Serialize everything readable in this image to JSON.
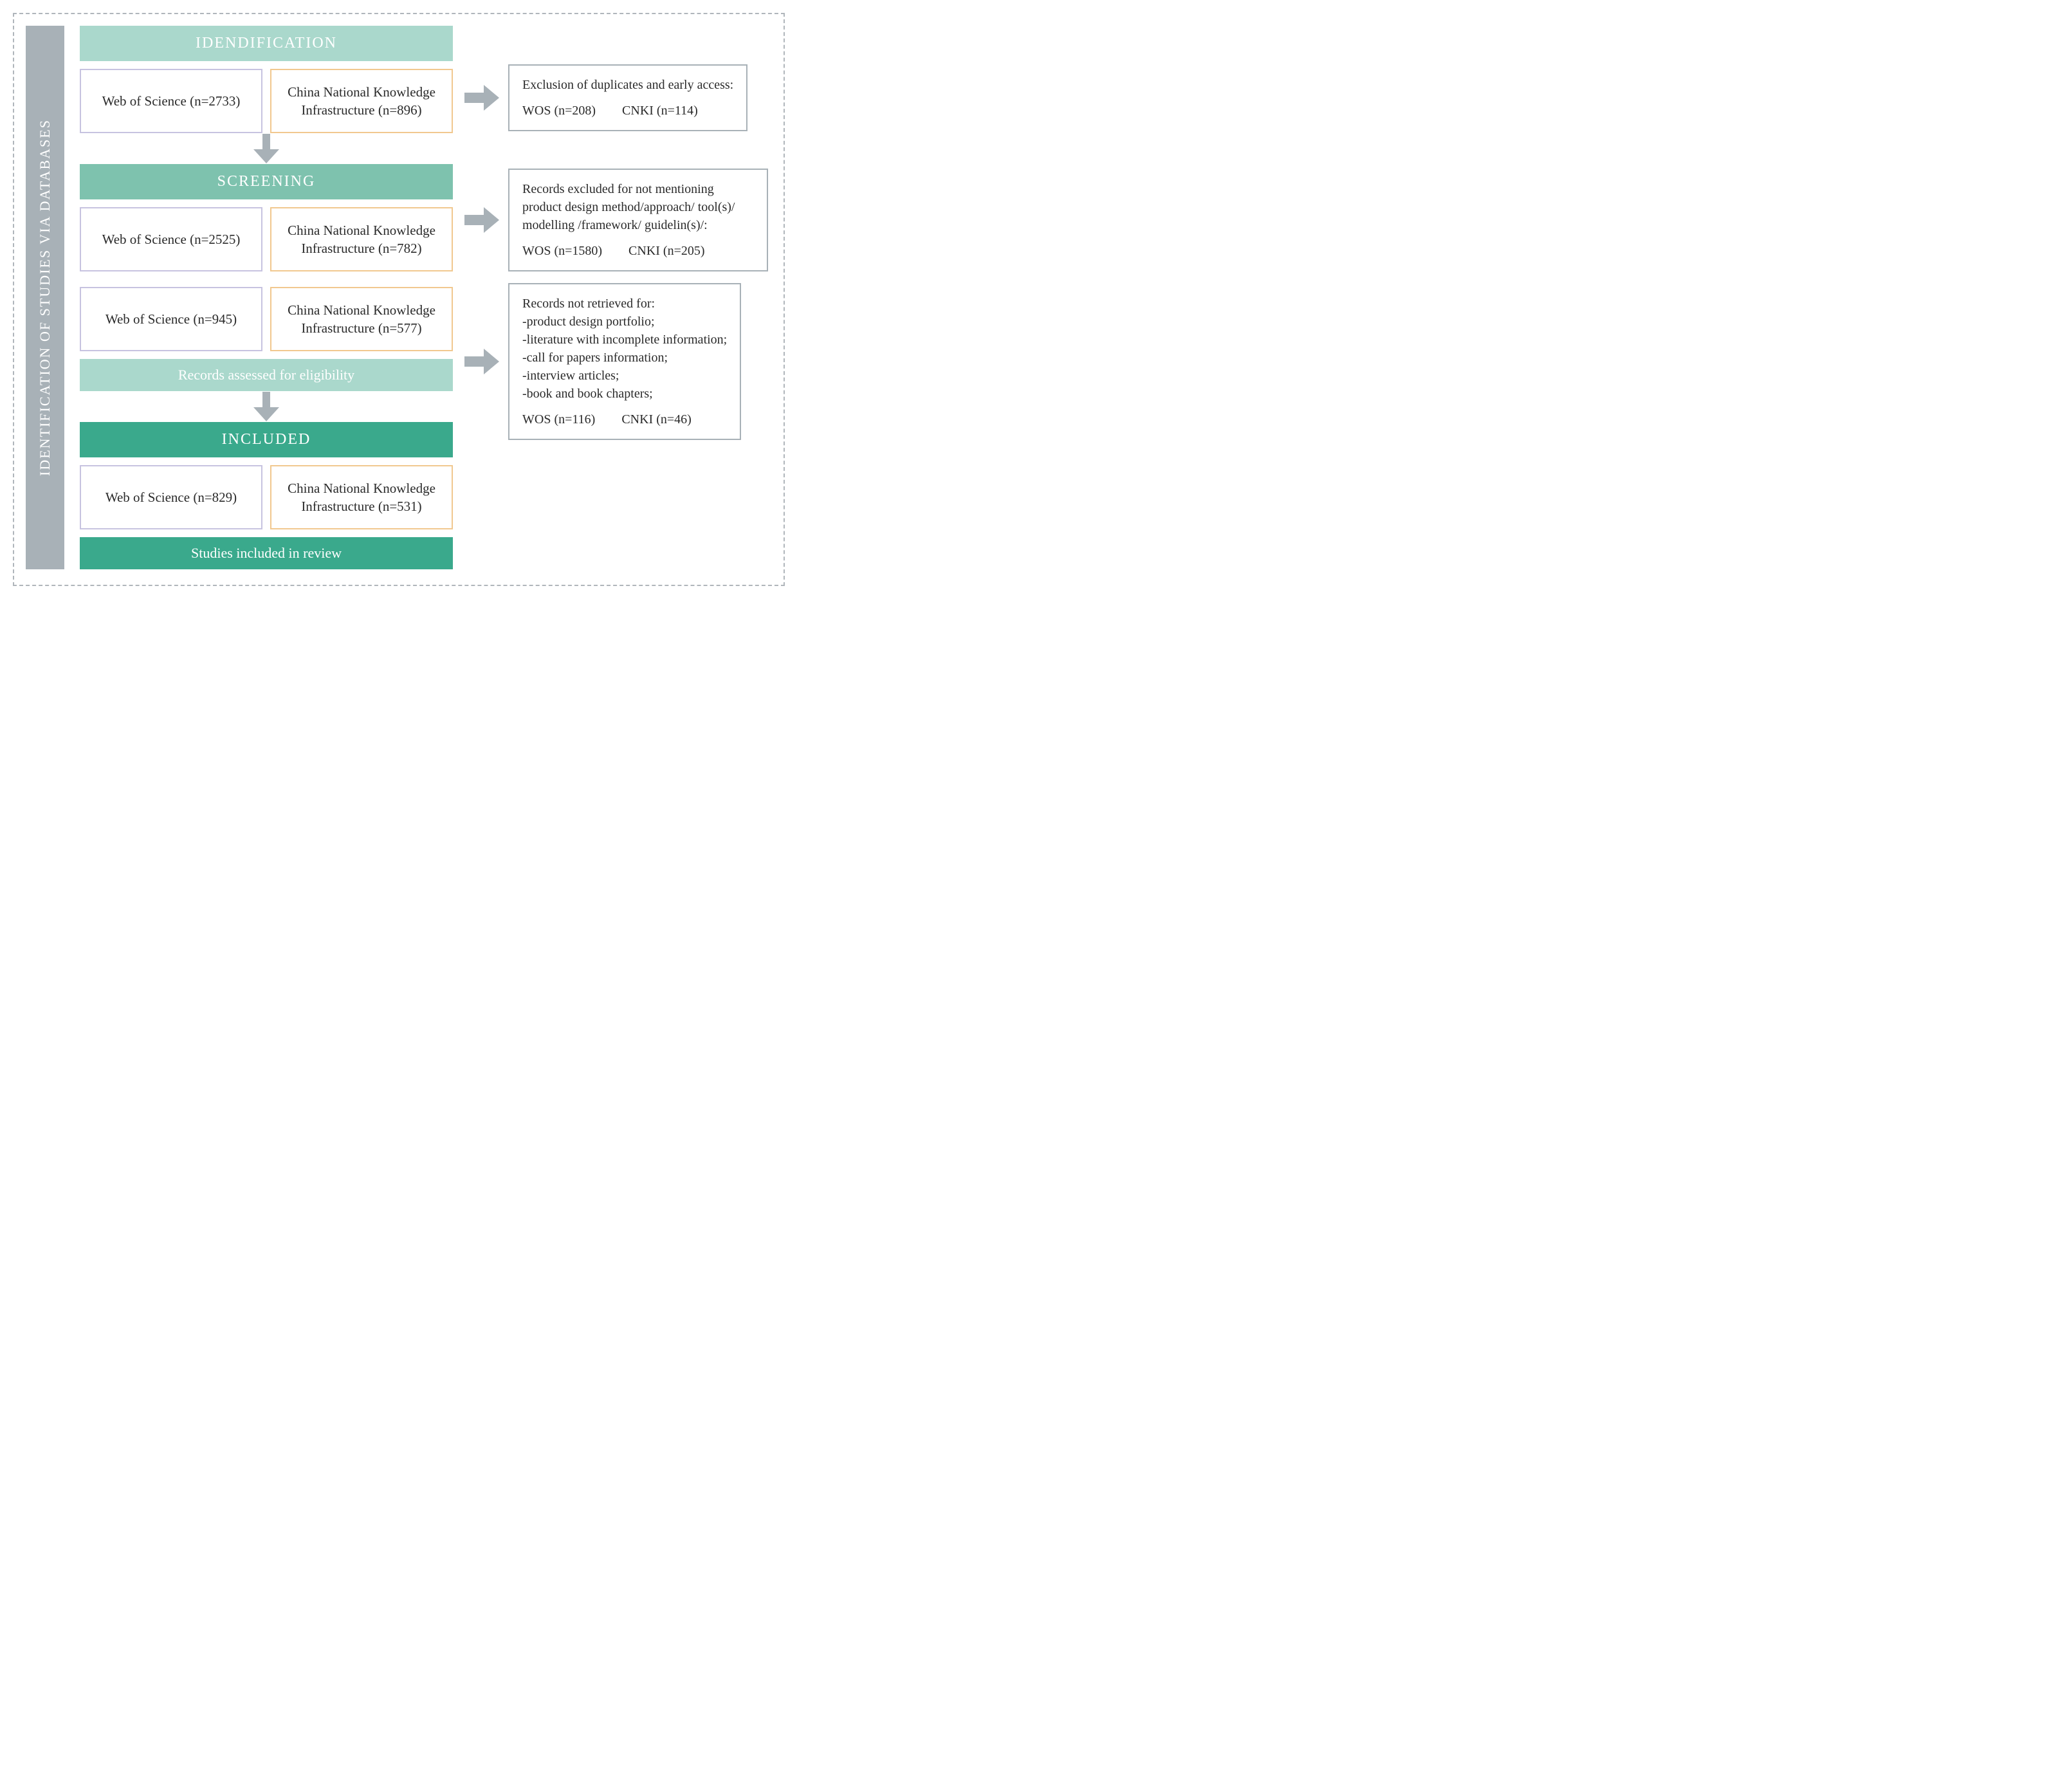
{
  "colors": {
    "side": "#a8b1b7",
    "header_light": "#aad8cc",
    "header_mid": "#7ec2ae",
    "header_dark": "#3aa98c",
    "wos_border": "#c7c3e0",
    "cnki_border": "#f1c88f",
    "arrow": "#a8b1b7",
    "excl_border": "#a8b1b7"
  },
  "side_label": "IDENTIFICATION OF STUDIES VIA DATABASES",
  "identification": {
    "header": "IDENDIFICATION",
    "wos": "Web of Science (n=2733)",
    "cnki": "China National Knowledge Infrastructure (n=896)",
    "excl_title": "Exclusion of duplicates and early access:",
    "excl_wos": "WOS (n=208)",
    "excl_cnki": "CNKI (n=114)"
  },
  "screening": {
    "header": "SCREENING",
    "r1": {
      "wos": "Web of Science (n=2525)",
      "cnki": "China National Knowledge Infrastructure (n=782)",
      "excl_title": "Records excluded for not mentioning product design method/approach/ tool(s)/ modelling /framework/ guidelin(s)/:",
      "excl_wos": "WOS (n=1580)",
      "excl_cnki": "CNKI (n=205)"
    },
    "r2": {
      "wos": "Web of Science (n=945)",
      "cnki": "China National Knowledge Infrastructure (n=577)",
      "excl_title": "Records not retrieved for:",
      "excl_items": [
        "-product design portfolio;",
        "-literature with incomplete information;",
        "-call for papers information;",
        "-interview articles;",
        "-book and book chapters;"
      ],
      "excl_wos": "WOS (n=116)",
      "excl_cnki": "CNKI (n=46)"
    },
    "assessed": "Records assessed for eligibility"
  },
  "included": {
    "header": "INCLUDED",
    "wos": "Web of Science (n=829)",
    "cnki": "China National Knowledge Infrastructure (n=531)",
    "final": "Studies included in review"
  }
}
